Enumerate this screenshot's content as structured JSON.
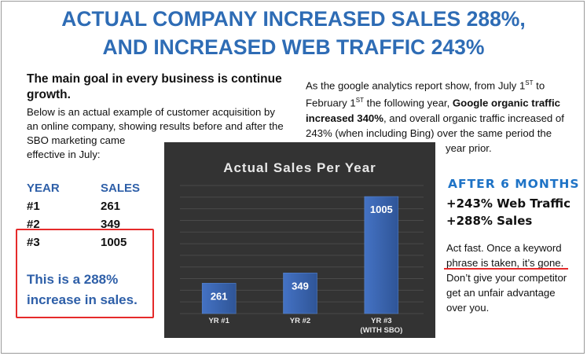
{
  "headline": {
    "line1": "ACTUAL COMPANY INCREASED SALES 288%,",
    "line2": "AND INCREASED WEB TRAFFIC 243%"
  },
  "left": {
    "goal_line1": "The main goal in every business is continue",
    "goal_line2": "growth.",
    "para_line1": "Below is an actual example of customer acquisition by",
    "para_line2": "an online company, showing results before and after the",
    "para_line3": "SBO marketing came",
    "para_line4": "effective in July:",
    "table": {
      "col_year": "YEAR",
      "col_sales": "SALES",
      "rows": [
        {
          "year": "#1",
          "sales": "261"
        },
        {
          "year": "#2",
          "sales": "349"
        },
        {
          "year": "#3",
          "sales": "1005"
        }
      ]
    },
    "increase_line1": "This is a 288%",
    "increase_line2": "increase in sales."
  },
  "right_para": {
    "l1a": "As the google analytics report show, from July 1",
    "l1sup": "ST",
    "l1b": " to",
    "l2a": "February 1",
    "l2sup": "ST",
    "l2b": " the following year, ",
    "l2bold": "Google organic traffic",
    "l3bold": "increased 340%",
    "l3b": ", and overall organic traffic increased of",
    "l4": "243% (when including Bing) over the same period the",
    "l5": "year prior."
  },
  "results": {
    "after": "AFTER 6 MONTHS",
    "gain1": "+243% Web Traffic",
    "gain2": "+288% Sales",
    "act_l1": "Act fast.  Once a keyword",
    "act_l2": "phrase is taken, it’s gone.",
    "act_l3": "Don’t give your competitor",
    "act_l4": "get an unfair advantage",
    "act_l5": "over you."
  },
  "chart_data": {
    "type": "bar",
    "title": "Actual  Sales Per Year",
    "categories": [
      "YR #1",
      "YR #2",
      "YR #3"
    ],
    "category_sublabels": [
      "",
      "",
      "(WITH SBO)"
    ],
    "values": [
      261,
      349,
      1005
    ],
    "ylim": [
      0,
      1100
    ],
    "grid": true,
    "colors": {
      "bar": "#4472c4",
      "bar_dark": "#2f5597",
      "bg": "#333333",
      "grid": "#4a4a4a",
      "text": "#e8e8e8"
    }
  },
  "colors": {
    "accent_blue": "#2e6cb5",
    "red": "#e52a2a"
  }
}
